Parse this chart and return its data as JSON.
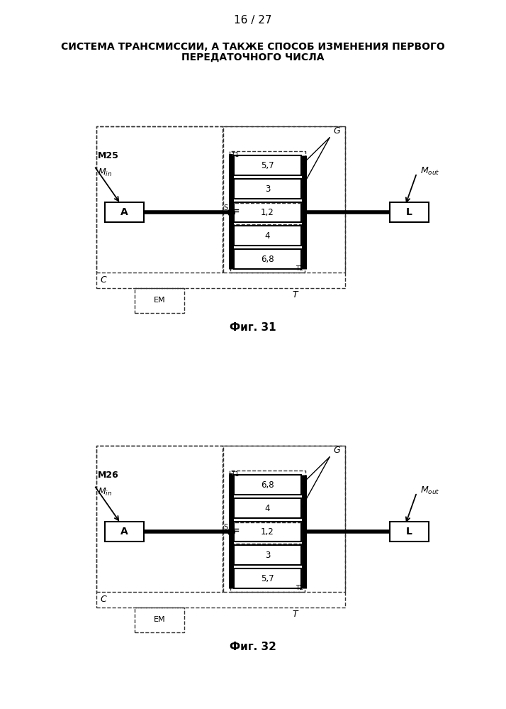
{
  "page_number": "16 / 27",
  "title_line1": "СИСТЕМА ТРАНСМИССИИ, А ТАКЖЕ СПОСОБ ИЗМЕНЕНИЯ ПЕРВОГО",
  "title_line2": "ПЕРЕДАТОЧНОГО ЧИСЛА",
  "fig31_label": "Фиг. 31",
  "fig32_label": "Фиг. 32",
  "background_color": "#ffffff",
  "fig31": {
    "module_label": "M25",
    "boxes_top": [
      "5,7",
      "3"
    ],
    "boxes_center": [
      "1,2"
    ],
    "boxes_bottom": [
      "4",
      "6,8"
    ]
  },
  "fig32": {
    "module_label": "M26",
    "boxes_top": [
      "6,8",
      "4"
    ],
    "boxes_center": [
      "1,2"
    ],
    "boxes_bottom": [
      "3",
      "5,7"
    ]
  }
}
